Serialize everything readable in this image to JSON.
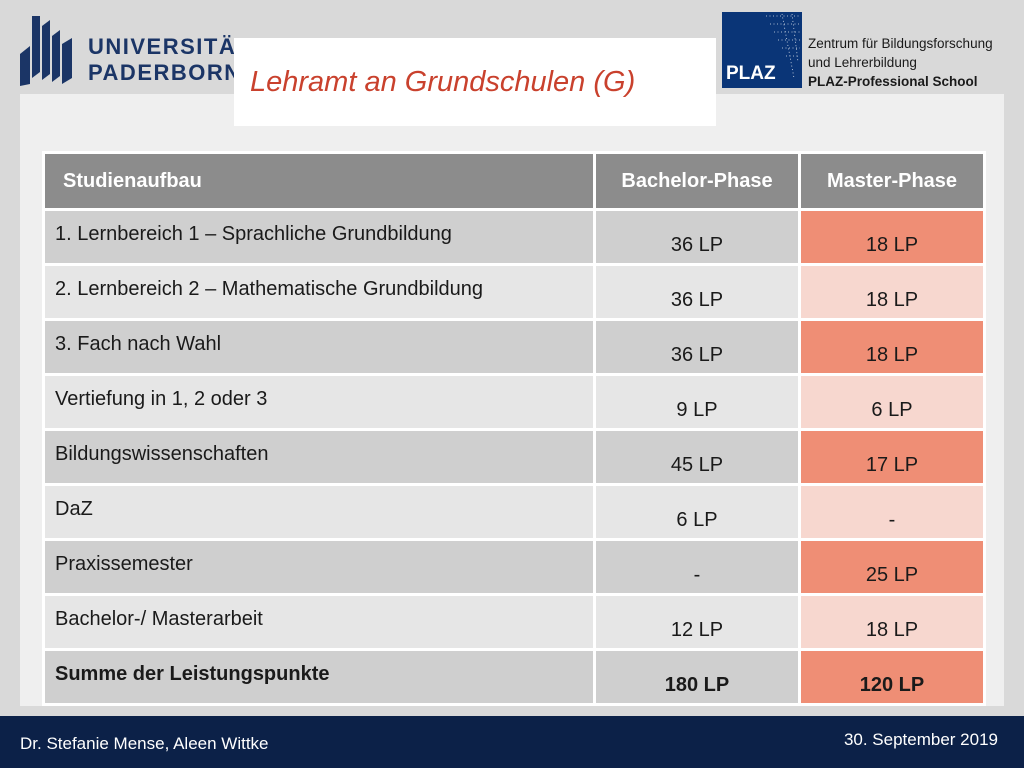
{
  "header": {
    "university_name": [
      "UNIVERSITÄT",
      "PADERBORN"
    ],
    "title": "Lehramt an Grundschulen (G)",
    "plaz": {
      "mark": "PLAZ",
      "tagline": [
        "Zentrum für Bildungsforschung",
        "und Lehrerbildung",
        "PLAZ-Professional School"
      ]
    }
  },
  "table": {
    "headers": [
      "Studienaufbau",
      "Bachelor-Phase",
      "Master-Phase"
    ],
    "rows": [
      {
        "label": "1. Lernbereich 1 – Sprachliche Grundbildung",
        "bachelor": "36 LP",
        "master": "18 LP"
      },
      {
        "label": "2. Lernbereich 2 – Mathematische Grundbildung",
        "bachelor": "36 LP",
        "master": "18 LP"
      },
      {
        "label": "3. Fach nach Wahl",
        "bachelor": "36 LP",
        "master": "18 LP"
      },
      {
        "label": "Vertiefung in 1, 2 oder 3",
        "bachelor": "9 LP",
        "master": "6 LP"
      },
      {
        "label": "Bildungswissenschaften",
        "bachelor": "45 LP",
        "master": "17 LP"
      },
      {
        "label": "DaZ",
        "bachelor": "6 LP",
        "master": "-"
      },
      {
        "label": "Praxissemester",
        "bachelor": "-",
        "master": "25 LP"
      },
      {
        "label": "Bachelor-/ Masterarbeit",
        "bachelor": "12 LP",
        "master": "18 LP"
      },
      {
        "label": "Summe der Leistungspunkte",
        "bachelor": "180 LP",
        "master": "120 LP"
      }
    ]
  },
  "footer": {
    "authors": "Dr. Stefanie Mense, Aleen Wittke",
    "date": "30. September 2019"
  },
  "colors": {
    "navy": "#0c2148",
    "title_red": "#c9412d",
    "header_gray": "#8c8c8c",
    "salmon_dark": "#ef8e75",
    "salmon_light": "#f7d7cf"
  }
}
